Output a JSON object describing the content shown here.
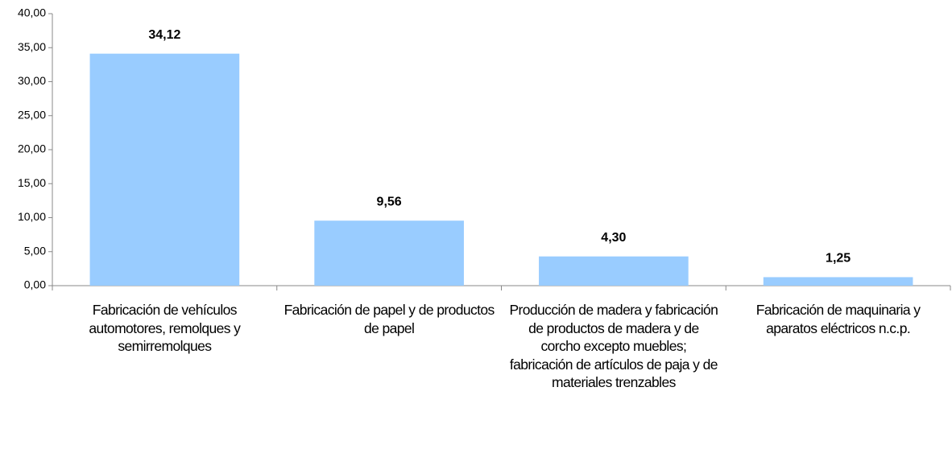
{
  "chart_data": {
    "type": "bar",
    "categories": [
      "Fabricación de vehículos automotores, remolques y semirremolques",
      "Fabricación de papel y de productos de papel",
      "Producción de madera y fabricación de productos de madera y de corcho excepto muebles; fabricación de artículos de paja y de materiales trenzables",
      "Fabricación de maquinaria y aparatos eléctricos n.c.p."
    ],
    "values": [
      34.12,
      9.56,
      4.3,
      1.25
    ],
    "value_labels": [
      "34,12",
      "9,56",
      "4,30",
      "1,25"
    ],
    "color": "#99ccff",
    "ylim": [
      0,
      40
    ],
    "yticks": [
      {
        "value": 0,
        "label": "0,00"
      },
      {
        "value": 5,
        "label": "5,00"
      },
      {
        "value": 10,
        "label": "10,00"
      },
      {
        "value": 15,
        "label": "15,00"
      },
      {
        "value": 20,
        "label": "20,00"
      },
      {
        "value": 25,
        "label": "25,00"
      },
      {
        "value": 30,
        "label": "30,00"
      },
      {
        "value": 35,
        "label": "35,00"
      },
      {
        "value": 40,
        "label": "40,00"
      }
    ],
    "grid": false
  }
}
